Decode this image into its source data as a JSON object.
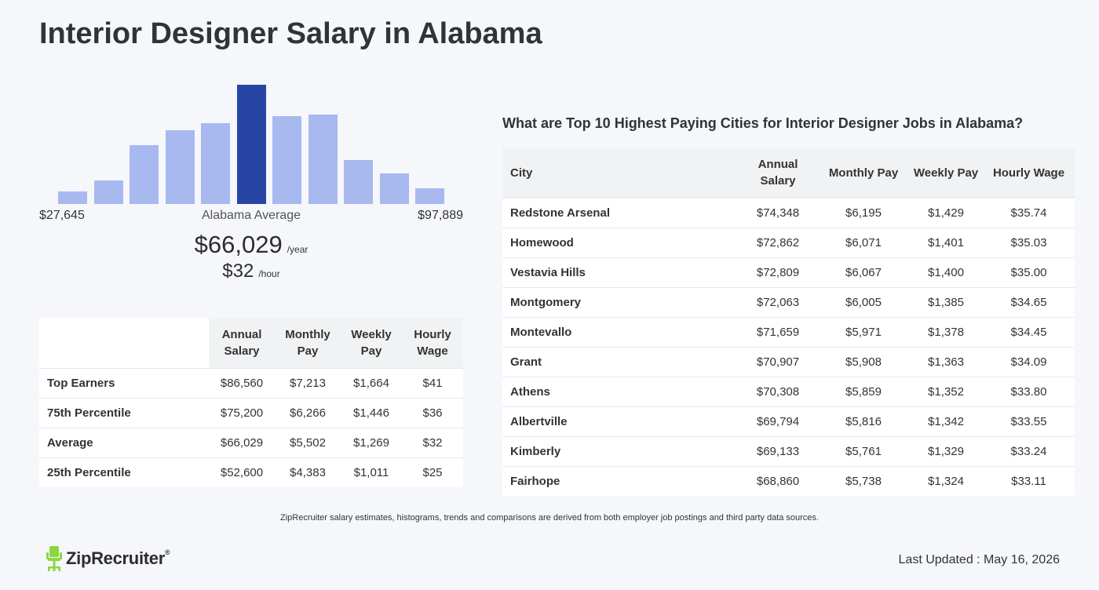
{
  "page": {
    "title": "Interior Designer Salary in Alabama"
  },
  "chart_data": {
    "type": "bar",
    "categories": [
      "1",
      "2",
      "3",
      "4",
      "5",
      "6",
      "7",
      "8",
      "9",
      "10",
      "11"
    ],
    "values": [
      16,
      30,
      75,
      94,
      103,
      152,
      112,
      114,
      56,
      39,
      20
    ],
    "highlight_index": 5,
    "colors": {
      "bar": "#a8b9f0",
      "highlight": "#2746a4"
    },
    "min_label": "$27,645",
    "max_label": "$97,889",
    "average_label": "Alabama Average"
  },
  "salary": {
    "annual": "$66,029",
    "annual_unit": "/year",
    "hourly": "$32",
    "hourly_unit": "/hour"
  },
  "percentile_table": {
    "headers": [
      "Annual Salary",
      "Monthly Pay",
      "Weekly Pay",
      "Hourly Wage"
    ],
    "rows": [
      {
        "label": "Top Earners",
        "values": [
          "$86,560",
          "$7,213",
          "$1,664",
          "$41"
        ]
      },
      {
        "label": "75th Percentile",
        "values": [
          "$75,200",
          "$6,266",
          "$1,446",
          "$36"
        ]
      },
      {
        "label": "Average",
        "values": [
          "$66,029",
          "$5,502",
          "$1,269",
          "$32"
        ]
      },
      {
        "label": "25th Percentile",
        "values": [
          "$52,600",
          "$4,383",
          "$1,011",
          "$25"
        ]
      }
    ]
  },
  "cities": {
    "title": "What are Top 10 Highest Paying Cities for Interior Designer Jobs in Alabama?",
    "headers": [
      "City",
      "Annual Salary",
      "Monthly Pay",
      "Weekly Pay",
      "Hourly Wage"
    ],
    "rows": [
      {
        "city": "Redstone Arsenal",
        "values": [
          "$74,348",
          "$6,195",
          "$1,429",
          "$35.74"
        ]
      },
      {
        "city": "Homewood",
        "values": [
          "$72,862",
          "$6,071",
          "$1,401",
          "$35.03"
        ]
      },
      {
        "city": "Vestavia Hills",
        "values": [
          "$72,809",
          "$6,067",
          "$1,400",
          "$35.00"
        ]
      },
      {
        "city": "Montgomery",
        "values": [
          "$72,063",
          "$6,005",
          "$1,385",
          "$34.65"
        ]
      },
      {
        "city": "Montevallo",
        "values": [
          "$71,659",
          "$5,971",
          "$1,378",
          "$34.45"
        ]
      },
      {
        "city": "Grant",
        "values": [
          "$70,907",
          "$5,908",
          "$1,363",
          "$34.09"
        ]
      },
      {
        "city": "Athens",
        "values": [
          "$70,308",
          "$5,859",
          "$1,352",
          "$33.80"
        ]
      },
      {
        "city": "Albertville",
        "values": [
          "$69,794",
          "$5,816",
          "$1,342",
          "$33.55"
        ]
      },
      {
        "city": "Kimberly",
        "values": [
          "$69,133",
          "$5,761",
          "$1,329",
          "$33.24"
        ]
      },
      {
        "city": "Fairhope",
        "values": [
          "$68,860",
          "$5,738",
          "$1,324",
          "$33.11"
        ]
      }
    ]
  },
  "footer": {
    "note": "ZipRecruiter salary estimates, histograms, trends and comparisons are derived from both employer job postings and third party data sources.",
    "logo_text": "ZipRecruiter",
    "logo_reg": "®",
    "last_updated": "Last Updated : May 16, 2026",
    "logo_color": "#8cd63f"
  }
}
